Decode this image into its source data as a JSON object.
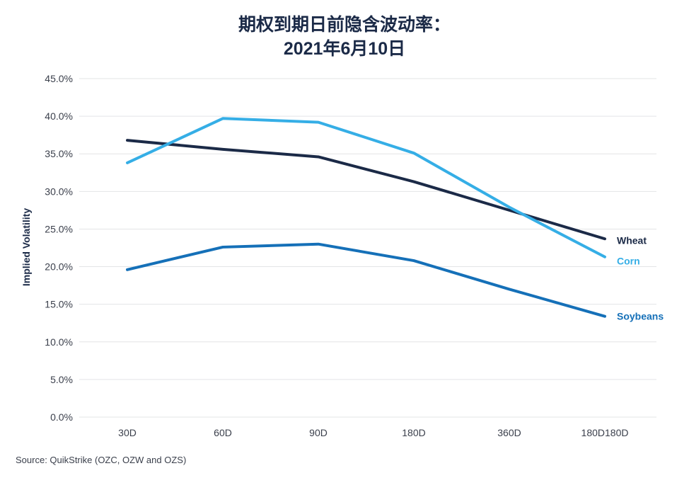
{
  "chart_data": {
    "type": "line",
    "title": [
      "期权到期日前隐含波动率：",
      "2021年6月10日"
    ],
    "ylabel": "Implied Volatility",
    "xlabel": "",
    "categories": [
      "30D",
      "60D",
      "90D",
      "180D",
      "360D",
      "180D180D"
    ],
    "y_ticks": [
      "0.0%",
      "5.0%",
      "10.0%",
      "15.0%",
      "20.0%",
      "25.0%",
      "30.0%",
      "35.0%",
      "40.0%",
      "45.0%"
    ],
    "ylim": [
      0,
      45
    ],
    "grid": "horizontal",
    "legend": "end-of-line labels",
    "series": [
      {
        "name": "Wheat",
        "color": "#1b2a47",
        "values": [
          36.8,
          35.6,
          34.6,
          31.3,
          27.5,
          23.7
        ]
      },
      {
        "name": "Corn",
        "color": "#35aee6",
        "values": [
          33.8,
          39.7,
          39.2,
          35.1,
          27.9,
          21.3
        ]
      },
      {
        "name": "Soybeans",
        "color": "#1570b8",
        "values": [
          19.6,
          22.6,
          23.0,
          20.8,
          17.0,
          13.4
        ]
      }
    ],
    "source": "Source: QuikStrike (OZC, OZW and OZS)"
  }
}
